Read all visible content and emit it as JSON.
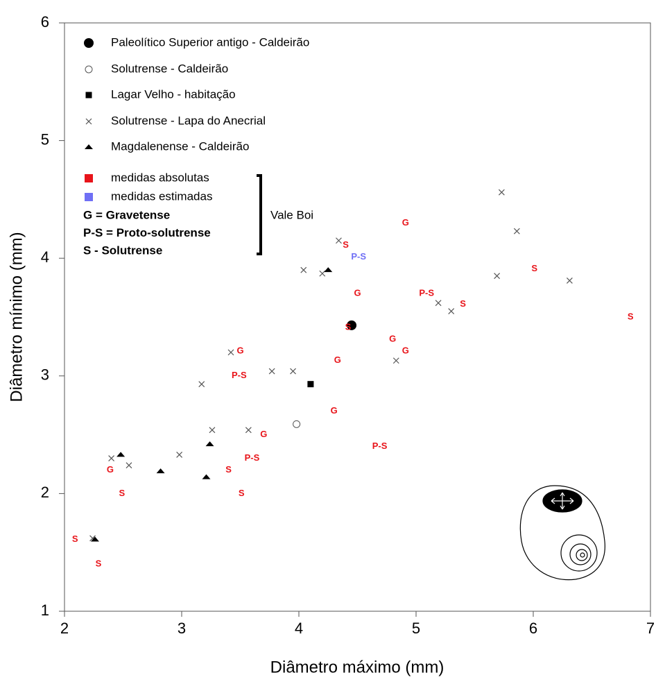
{
  "chart_data": {
    "type": "scatter",
    "x_label": "Diâmetro máximo (mm)",
    "y_label": "Diâmetro mínimo (mm)",
    "xlim": [
      2,
      7
    ],
    "ylim": [
      1,
      6
    ],
    "xticks": [
      2,
      3,
      4,
      5,
      6,
      7
    ],
    "yticks": [
      1,
      2,
      3,
      4,
      5,
      6
    ],
    "grid": false,
    "legend": "upper left",
    "series": [
      {
        "name": "Paleolítico Superior antigo - Caldeirão",
        "marker": "circle-filled",
        "color": "#000000",
        "x": [
          4.45
        ],
        "values": [
          3.43
        ]
      },
      {
        "name": "Solutrense - Caldeirão",
        "marker": "circle-open",
        "color": "#555555",
        "x": [
          3.98
        ],
        "values": [
          2.59
        ]
      },
      {
        "name": "Lagar Velho - habitação",
        "marker": "square",
        "color": "#000000",
        "x": [
          4.1
        ],
        "values": [
          2.93
        ]
      },
      {
        "name": "Solutrense - Lapa do Anecrial",
        "marker": "x",
        "color": "#555555",
        "x": [
          5.73,
          5.86,
          4.34,
          4.04,
          4.2,
          5.69,
          6.31,
          5.19,
          5.3,
          4.83,
          3.42,
          3.77,
          3.95,
          3.17,
          3.26,
          3.57,
          2.98,
          2.4,
          2.55,
          2.24
        ],
        "values": [
          4.56,
          4.23,
          4.15,
          3.9,
          3.87,
          3.85,
          3.81,
          3.62,
          3.55,
          3.13,
          3.2,
          3.04,
          3.04,
          2.93,
          2.54,
          2.54,
          2.33,
          2.3,
          2.24,
          1.62
        ]
      },
      {
        "name": "Magdalenense - Caldeirão",
        "marker": "triangle",
        "color": "#000000",
        "x": [
          4.25,
          2.48,
          3.24,
          2.82,
          3.21,
          2.26
        ],
        "values": [
          3.9,
          2.33,
          2.42,
          2.19,
          2.14,
          1.61
        ]
      },
      {
        "name": "medidas absolutas",
        "marker": "text",
        "color": "#e8141a",
        "x": [
          4.4,
          4.91,
          6.01,
          5.09,
          5.4,
          6.83,
          4.5,
          4.42,
          4.8,
          4.91,
          4.33,
          3.5,
          3.49,
          4.3,
          4.69,
          3.7,
          3.6,
          3.4,
          2.39,
          2.49,
          3.51,
          2.09,
          2.29
        ],
        "values": [
          4.11,
          4.3,
          3.91,
          3.7,
          3.61,
          3.5,
          3.7,
          3.41,
          3.31,
          3.21,
          3.13,
          3.21,
          3.0,
          2.7,
          2.4,
          2.5,
          2.3,
          2.2,
          2.2,
          2.0,
          2.0,
          1.61,
          1.4
        ],
        "point_labels": [
          "S",
          "G",
          "S",
          "P-S",
          "S",
          "S",
          "G",
          "S",
          "G",
          "G",
          "G",
          "G",
          "P-S",
          "G",
          "P-S",
          "G",
          "P-S",
          "S",
          "G",
          "S",
          "S",
          "S",
          "S"
        ]
      },
      {
        "name": "medidas estimadas",
        "marker": "text",
        "color": "#6f6ff5",
        "x": [
          4.51
        ],
        "values": [
          4.01
        ],
        "point_labels": [
          "P-S"
        ]
      }
    ],
    "legend_notes": [
      "G = Gravetense",
      "P-S = Proto-solutrense",
      "S - Solutrense"
    ],
    "group_label": "Vale Boi"
  }
}
